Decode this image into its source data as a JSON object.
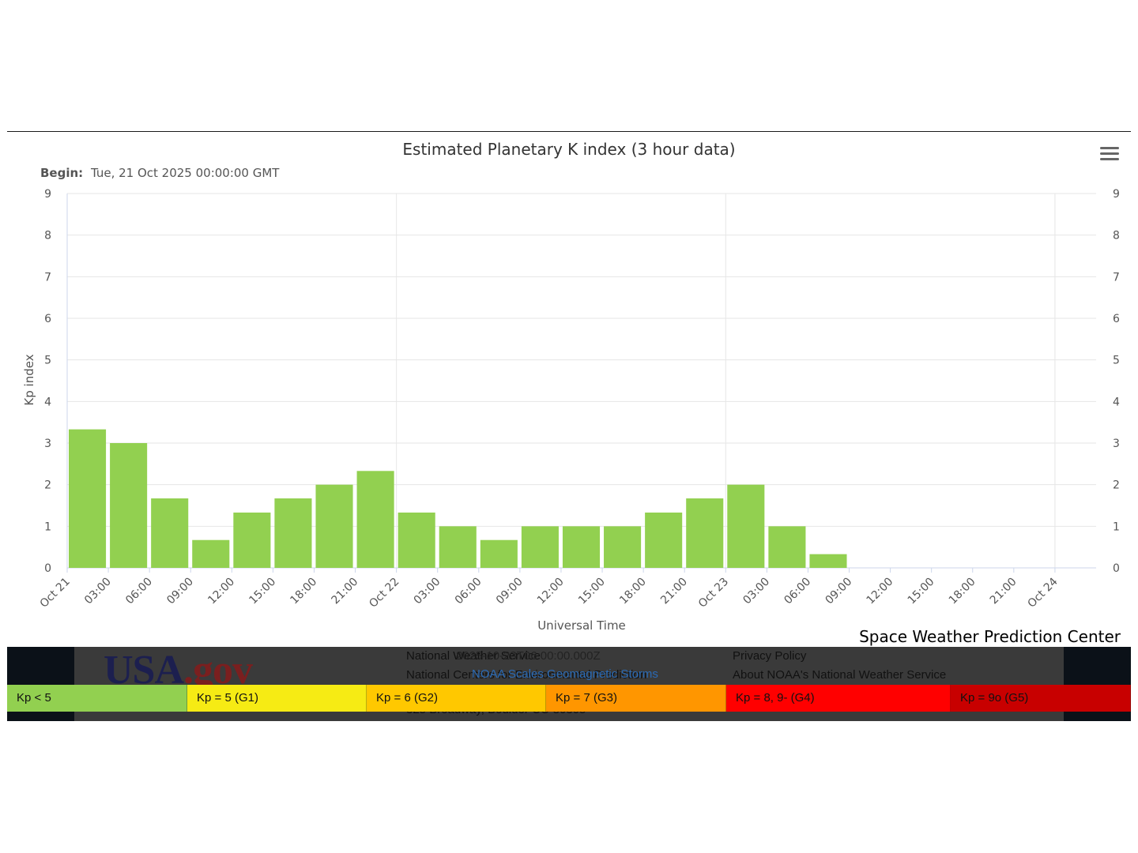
{
  "chart_data": {
    "type": "bar",
    "title": "Estimated Planetary K index (3 hour data)",
    "subtitle_label": "Begin:",
    "subtitle_value": "Tue, 21 Oct 2025 00:00:00 GMT",
    "xlabel": "Universal Time",
    "ylabel": "Kp index",
    "ylim": [
      0,
      9
    ],
    "yticks": [
      0,
      1,
      2,
      3,
      4,
      5,
      6,
      7,
      8,
      9
    ],
    "xtick_labels": [
      "Oct 21",
      "03:00",
      "06:00",
      "09:00",
      "12:00",
      "15:00",
      "18:00",
      "21:00",
      "Oct 22",
      "03:00",
      "06:00",
      "09:00",
      "12:00",
      "15:00",
      "18:00",
      "21:00",
      "Oct 23",
      "03:00",
      "06:00",
      "09:00",
      "12:00",
      "15:00",
      "18:00",
      "21:00",
      "Oct 24"
    ],
    "categories": [
      "Oct 21 00:00",
      "Oct 21 03:00",
      "Oct 21 06:00",
      "Oct 21 09:00",
      "Oct 21 12:00",
      "Oct 21 15:00",
      "Oct 21 18:00",
      "Oct 21 21:00",
      "Oct 22 00:00",
      "Oct 22 03:00",
      "Oct 22 06:00",
      "Oct 22 09:00",
      "Oct 22 12:00",
      "Oct 22 15:00",
      "Oct 22 18:00",
      "Oct 22 21:00",
      "Oct 23 00:00",
      "Oct 23 03:00",
      "Oct 23 06:00"
    ],
    "values": [
      3.33,
      3.0,
      1.67,
      0.67,
      1.33,
      1.67,
      2.0,
      2.33,
      1.33,
      1.0,
      0.67,
      1.0,
      1.0,
      1.0,
      1.33,
      1.67,
      2.0,
      1.0,
      0.33
    ],
    "bar_color": "#92d050",
    "grid": true,
    "dual_y_axis": true
  },
  "menu_icon": "hamburger-menu-icon",
  "credit": "Space Weather Prediction Center",
  "footer": {
    "logo_usa": "USA",
    "logo_gov": ".gov",
    "links_col1": [
      "National Weather Service",
      "National Centers for Environmental Prediction"
    ],
    "address": "325 Broadway, Boulder CO 80305",
    "links_col2": [
      "Privacy Policy",
      "About NOAA's National Weather Service"
    ],
    "timestamp": "2025-10-23T06:00:00.000Z",
    "scales_link": "NOAA Scales Geomagnetic Storms"
  },
  "legend": [
    {
      "label": "Kp < 5",
      "color": "#92d050"
    },
    {
      "label": "Kp = 5 (G1)",
      "color": "#f6eb14"
    },
    {
      "label": "Kp = 6 (G2)",
      "color": "#ffc800"
    },
    {
      "label": "Kp = 7 (G3)",
      "color": "#ff9600"
    },
    {
      "label": "Kp = 8, 9- (G4)",
      "color": "#ff0000"
    },
    {
      "label": "Kp = 9o (G5)",
      "color": "#c80000"
    }
  ]
}
